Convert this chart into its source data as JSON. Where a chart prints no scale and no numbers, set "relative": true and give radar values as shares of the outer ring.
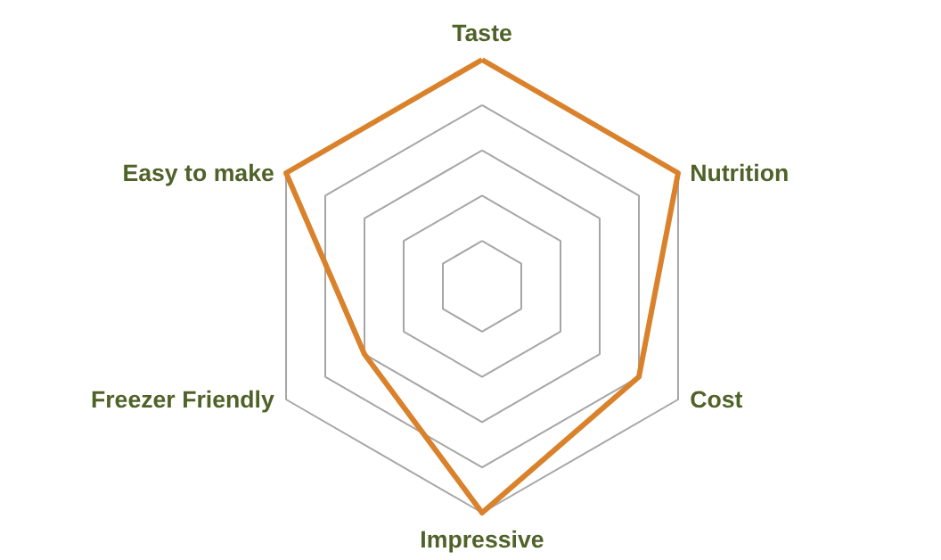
{
  "chart_data": {
    "type": "radar",
    "relative": true,
    "grid": true,
    "categories": [
      "Taste",
      "Nutrition",
      "Cost",
      "Impressive",
      "Freezer Friendly",
      "Easy to make"
    ],
    "series": [
      {
        "color": "#d9822b",
        "values": [
          1,
          1,
          0.8,
          1,
          0.6,
          1
        ]
      }
    ]
  }
}
